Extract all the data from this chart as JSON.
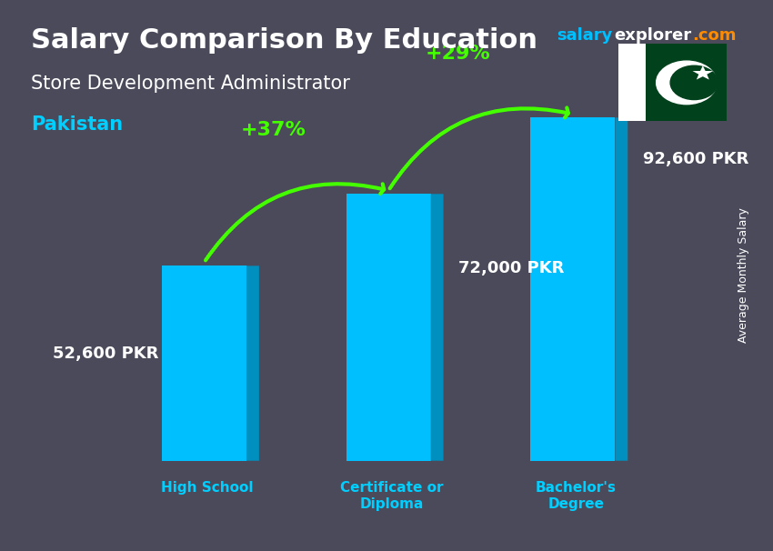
{
  "title": "Salary Comparison By Education",
  "subtitle": "Store Development Administrator",
  "country": "Pakistan",
  "watermark": "salaryexplorer.com",
  "ylabel": "Average Monthly Salary",
  "categories": [
    "High School",
    "Certificate or\nDiploma",
    "Bachelor's\nDegree"
  ],
  "values": [
    52600,
    72000,
    92600
  ],
  "labels": [
    "52,600 PKR",
    "72,000 PKR",
    "92,600 PKR"
  ],
  "pct_changes": [
    "+37%",
    "+29%"
  ],
  "bar_color_face": "#00BFFF",
  "bar_color_side": "#0090C0",
  "bar_color_top": "#40D0FF",
  "arrow_color": "#44FF00",
  "title_color": "#FFFFFF",
  "subtitle_color": "#FFFFFF",
  "country_color": "#00CFFF",
  "label_color": "#FFFFFF",
  "xlabel_color": "#00CFFF",
  "ylabel_color": "#FFFFFF",
  "pct_color": "#44FF00",
  "bg_color": "#4a4a5a",
  "watermark_salary_color": "#00BFFF",
  "watermark_explorer_color": "#FFFFFF",
  "watermark_com_color": "#FF8C00",
  "figsize": [
    8.5,
    6.06
  ],
  "dpi": 100
}
